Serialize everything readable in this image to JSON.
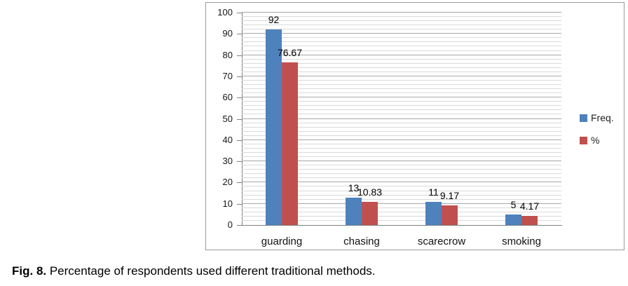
{
  "figure": {
    "caption_label": "Fig. 8.",
    "caption_text": " Percentage of respondents used different traditional methods."
  },
  "chart_data": {
    "type": "bar",
    "categories": [
      "guarding",
      "chasing",
      "scarecrow",
      "smoking"
    ],
    "series": [
      {
        "name": "Freq.",
        "color": "#4F81BD",
        "values": [
          92,
          13,
          11,
          5
        ],
        "labels": [
          "92",
          "13",
          "11",
          "5"
        ]
      },
      {
        "name": "%",
        "color": "#C0504D",
        "values": [
          76.67,
          10.83,
          9.17,
          4.17
        ],
        "labels": [
          "76.67",
          "10.83",
          "9.17",
          "4.17"
        ]
      }
    ],
    "title": "",
    "xlabel": "",
    "ylabel": "",
    "y_axis": {
      "min": 0,
      "max": 100,
      "major_step": 10,
      "minor_step": 2,
      "tick_labels": [
        "0",
        "10",
        "20",
        "30",
        "40",
        "50",
        "60",
        "70",
        "80",
        "90",
        "100"
      ]
    },
    "legend": {
      "position": "right",
      "entries": [
        "Freq.",
        "%"
      ]
    },
    "grid": {
      "major": true,
      "minor": true
    },
    "colors": {
      "freq_bar": "#4F81BD",
      "pct_bar": "#C0504D",
      "axis": "#808080",
      "minor_grid": "#dadada",
      "major_grid": "#a8a8a8",
      "frame_border": "#9a9a9a"
    }
  }
}
